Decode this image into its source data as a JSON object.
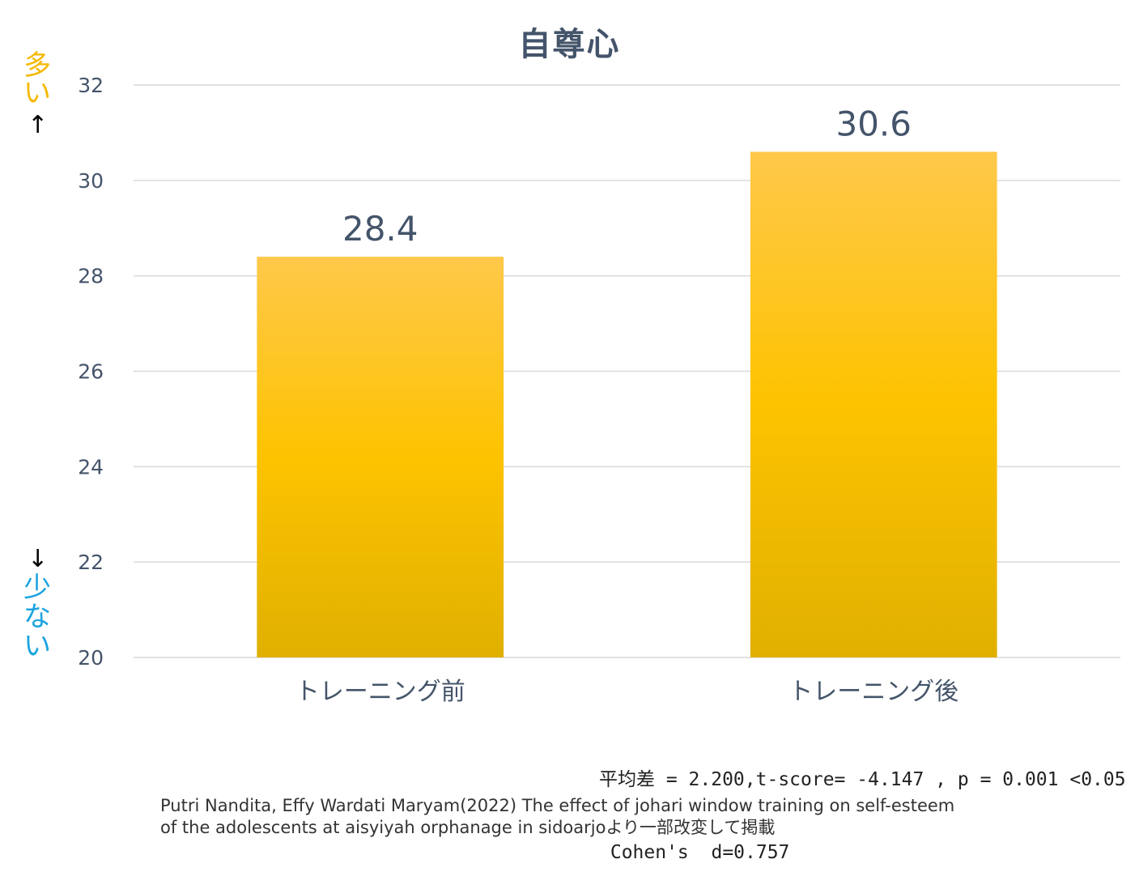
{
  "chart_data": {
    "type": "bar",
    "title": "自尊心",
    "categories": [
      "トレーニング前",
      "トレーニング後"
    ],
    "values": [
      28.4,
      30.6
    ],
    "data_labels": [
      "28.4",
      "30.6"
    ],
    "ylim": [
      20,
      32
    ],
    "yticks": [
      20,
      22,
      24,
      26,
      28,
      30,
      32
    ],
    "grid": true,
    "legend": "none",
    "colors": {
      "bar_top": "#ffc84a",
      "bar_mid": "#fdc300",
      "bar_bottom": "#e0b000",
      "grid": "#d9d9d9",
      "text": "#44546a"
    }
  },
  "side_labels": {
    "high": "多い",
    "low": "少ない",
    "high_arrow": "↑",
    "low_arrow": "↓",
    "colors": {
      "high": "#f5b800",
      "low": "#1aa3e0"
    }
  },
  "stats": {
    "line1": "平均差 = 2.200,t-score= -4.147 , p = 0.001 <0.05",
    "line2": " Cohen's  d=0.757"
  },
  "citation": {
    "line1": "Putri Nandita, Effy Wardati Maryam(2022) The effect of johari window training on self-esteem",
    "line2": "of the adolescents at aisyiyah orphanage in sidoarjoより一部改変して掲載"
  }
}
